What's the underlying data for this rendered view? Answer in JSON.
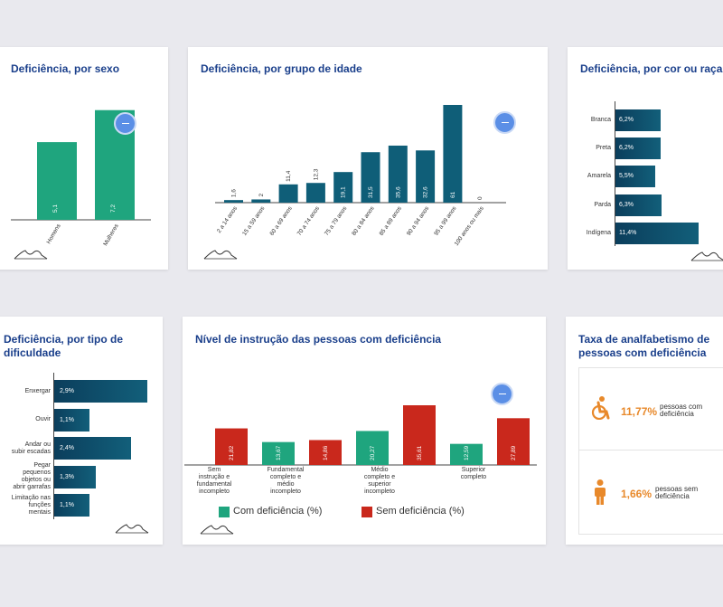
{
  "colors": {
    "title": "#1a3f8b",
    "green": "#1fa57e",
    "teal": "#0f5e78",
    "dark": "#0b3e5c",
    "red": "#c9281c",
    "orange": "#e8892b",
    "accent_button": "#5b8fe6"
  },
  "icons": {
    "mountain": "mountain-logo-icon",
    "more": "more-button",
    "wheelchair": "wheelchair-icon",
    "person": "person-icon"
  },
  "sex_card": {
    "title": "Deficiência, por sexo",
    "chart_data": {
      "type": "bar",
      "categories": [
        "Homens",
        "Mulheres"
      ],
      "values": [
        5.1,
        7.2
      ],
      "value_labels": [
        "5,1",
        "7,2"
      ],
      "ylim": [
        0,
        7.6
      ]
    }
  },
  "age_card": {
    "title": "Deficiência, por grupo de idade",
    "chart_data": {
      "type": "bar",
      "categories": [
        "2 a 14 anos",
        "15 a 59 anos",
        "60 a 69 anos",
        "70 a 74 anos",
        "75 a 79 anos",
        "80 a 84 anos",
        "85 a 89 anos",
        "90 a 94 anos",
        "95 a 99 anos",
        "100 anos ou mais"
      ],
      "values": [
        1.6,
        2,
        11.4,
        12.3,
        19.1,
        31.5,
        35.6,
        32.6,
        61,
        0
      ],
      "value_labels": [
        "1,6",
        "2",
        "11,4",
        "12,3",
        "19,1",
        "31,5",
        "35,6",
        "32,6",
        "61",
        "0"
      ],
      "ylim": [
        0,
        61
      ]
    }
  },
  "race_card": {
    "title": "Deficiência, por cor ou raça",
    "chart_data": {
      "type": "bar",
      "orientation": "horizontal",
      "categories": [
        "Branca",
        "Preta",
        "Amarela",
        "Parda",
        "Indígena"
      ],
      "values": [
        6.2,
        6.2,
        5.5,
        6.3,
        11.4
      ],
      "value_labels": [
        "6,2%",
        "6,2%",
        "5,5%",
        "6,3%",
        "11,4%"
      ],
      "xlim": [
        0,
        11.4
      ]
    }
  },
  "difficulty_card": {
    "title_lines": [
      "Deficiência, por tipo de",
      "dificuldade"
    ],
    "chart_data": {
      "type": "bar",
      "orientation": "horizontal",
      "categories": [
        [
          "Enxergar"
        ],
        [
          "Ouvir"
        ],
        [
          "Andar ou",
          "subir escadas"
        ],
        [
          "Pegar",
          "pequenos",
          "objetos ou",
          "abrir garrafas"
        ],
        [
          "Limitação nas",
          "funções",
          "mentais"
        ]
      ],
      "values": [
        2.9,
        1.1,
        2.4,
        1.3,
        1.1
      ],
      "value_labels": [
        "2,9%",
        "1,1%",
        "2,4%",
        "1,3%",
        "1,1%"
      ],
      "xlim": [
        0,
        2.9
      ]
    }
  },
  "education_card": {
    "title": "Nível de instrução das pessoas com deficiência",
    "chart_data": {
      "type": "bar",
      "categories": [
        [
          "Sem",
          "instrução e",
          "fundamental",
          "incompleto"
        ],
        [
          "Fundamental",
          "completo e",
          "médio",
          "incompleto"
        ],
        [
          "Médio",
          "completo e",
          "superior",
          "incompleto"
        ],
        [
          "Superior",
          "completo"
        ]
      ],
      "series": [
        {
          "name": "Com deficiência (%)",
          "values": [
            null,
            13.67,
            20.27,
            12.59
          ],
          "value_labels": [
            "",
            "13,67",
            "20,27",
            "12,59"
          ],
          "color": "#1fa57e"
        },
        {
          "name": "Sem deficiência (%)",
          "values": [
            21.82,
            14.86,
            35.61,
            27.89
          ],
          "value_labels": [
            "21,82",
            "14,86",
            "35,61",
            "27,89"
          ],
          "color": "#c9281c"
        }
      ],
      "ylim": [
        0,
        35.61
      ],
      "legend": "bottom"
    }
  },
  "literacy_card": {
    "title_lines": [
      "Taxa de analfabetismo de",
      "pessoas com deficiência"
    ],
    "rows": [
      {
        "value": "11,77%",
        "label_lines": [
          "pessoas com",
          "deficiência"
        ],
        "icon": "wheelchair-icon"
      },
      {
        "value": "1,66%",
        "label_lines": [
          "pessoas sem",
          "deficiência"
        ],
        "icon": "person-icon"
      }
    ]
  }
}
